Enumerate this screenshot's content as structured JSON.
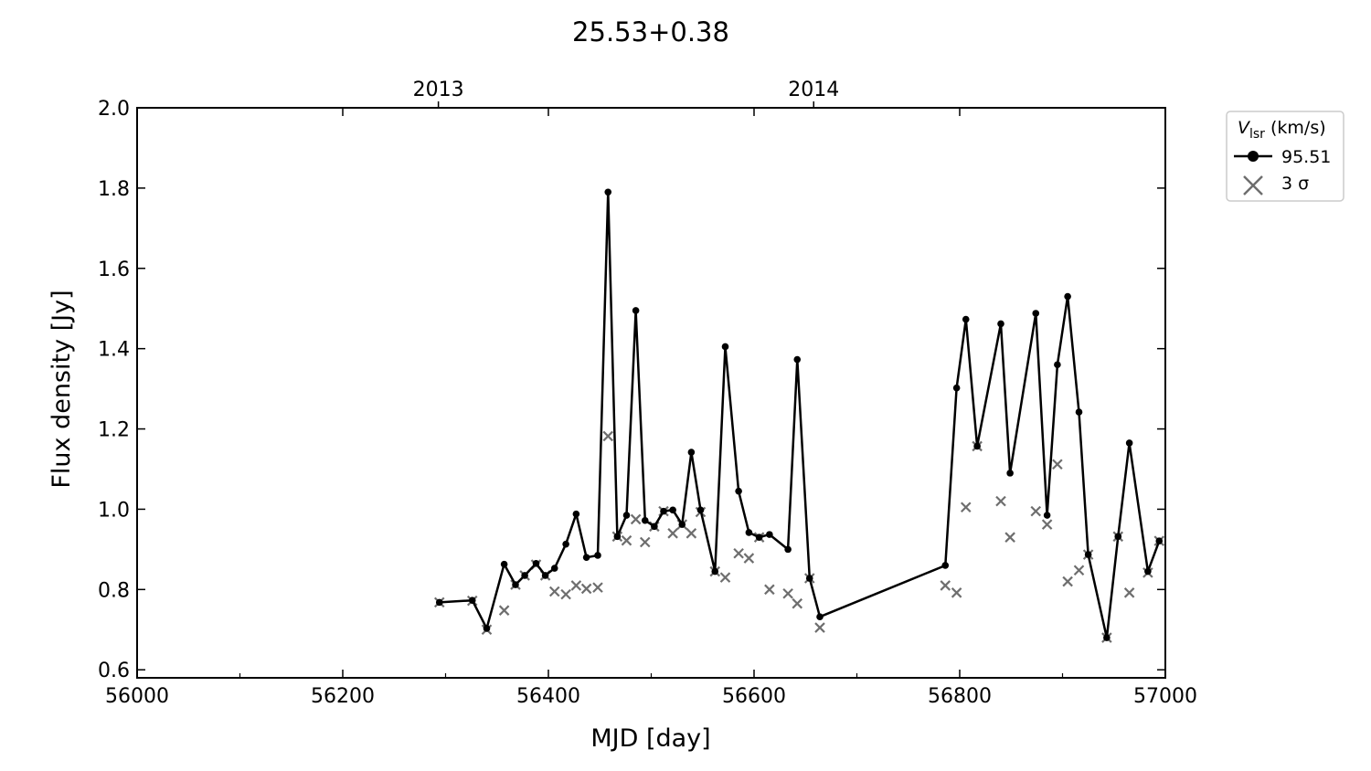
{
  "chart_data": {
    "type": "line",
    "title": "25.53+0.38",
    "xlabel": "MJD [day]",
    "ylabel": "Flux density [Jy]",
    "xlim": [
      56000,
      57000
    ],
    "ylim": [
      0.58,
      2.0
    ],
    "xticks": [
      56000,
      56200,
      56400,
      56600,
      56800,
      57000
    ],
    "yticks": [
      0.6,
      0.8,
      1.0,
      1.2,
      1.4,
      1.6,
      1.8,
      2.0
    ],
    "xticks_minor": [
      56100,
      56300,
      56500,
      56700,
      56900
    ],
    "top_axis": {
      "ticks": [
        {
          "x": 56293,
          "label": "2013"
        },
        {
          "x": 56658,
          "label": "2014"
        }
      ]
    },
    "grid": false,
    "legend_position": "outside-right-top",
    "legend_title": {
      "main": "V",
      "sub": "lsr",
      "rest": " (km/s)"
    },
    "series": [
      {
        "name": "95.51",
        "style": "line-marker",
        "color": "#000000",
        "x": [
          56294,
          56326,
          56340,
          56357,
          56368,
          56377,
          56388,
          56397,
          56406,
          56417,
          56427,
          56437,
          56448,
          56458,
          56467,
          56476,
          56485,
          56494,
          56503,
          56512,
          56521,
          56530,
          56539,
          56548,
          56562,
          56572,
          56585,
          56595,
          56605,
          56615,
          56633,
          56642,
          56654,
          56664,
          56786,
          56797,
          56806,
          56817,
          56840,
          56849,
          56874,
          56885,
          56895,
          56905,
          56916,
          56925,
          56943,
          56954,
          56965,
          56983,
          56994
        ],
        "y": [
          0.768,
          0.773,
          0.703,
          0.863,
          0.812,
          0.835,
          0.865,
          0.835,
          0.853,
          0.913,
          0.988,
          0.88,
          0.885,
          1.79,
          0.932,
          0.985,
          1.495,
          0.972,
          0.957,
          0.995,
          0.998,
          0.962,
          1.142,
          0.998,
          0.845,
          1.405,
          1.045,
          0.942,
          0.93,
          0.937,
          0.9,
          1.373,
          0.828,
          0.732,
          0.86,
          1.302,
          1.473,
          1.157,
          1.462,
          1.09,
          1.488,
          0.985,
          1.36,
          1.53,
          1.242,
          0.887,
          0.68,
          0.932,
          1.165,
          0.845,
          0.921
        ]
      },
      {
        "name": "3 σ",
        "style": "x-marker",
        "color": "#6e6e6e",
        "x": [
          56294,
          56326,
          56340,
          56357,
          56368,
          56377,
          56388,
          56397,
          56406,
          56417,
          56427,
          56437,
          56448,
          56458,
          56467,
          56476,
          56485,
          56494,
          56503,
          56512,
          56521,
          56530,
          56539,
          56548,
          56562,
          56572,
          56585,
          56595,
          56605,
          56615,
          56633,
          56642,
          56654,
          56664,
          56786,
          56797,
          56806,
          56817,
          56840,
          56849,
          56874,
          56885,
          56895,
          56905,
          56916,
          56925,
          56943,
          56954,
          56965,
          56983,
          56994
        ],
        "y": [
          0.768,
          0.772,
          0.7,
          0.748,
          0.812,
          0.835,
          0.862,
          0.835,
          0.795,
          0.788,
          0.81,
          0.802,
          0.805,
          1.182,
          0.932,
          0.922,
          0.975,
          0.918,
          0.957,
          0.995,
          0.94,
          0.962,
          0.94,
          0.993,
          0.845,
          0.83,
          0.89,
          0.878,
          0.93,
          0.8,
          0.79,
          0.765,
          0.828,
          0.705,
          0.81,
          0.792,
          1.005,
          1.157,
          1.02,
          0.93,
          0.995,
          0.962,
          1.112,
          0.82,
          0.848,
          0.887,
          0.68,
          0.932,
          0.792,
          0.842,
          0.921
        ]
      }
    ]
  },
  "colors": {
    "series_line": "#000000",
    "sigma_marker": "#6e6e6e",
    "legend_border": "#cccccc"
  }
}
